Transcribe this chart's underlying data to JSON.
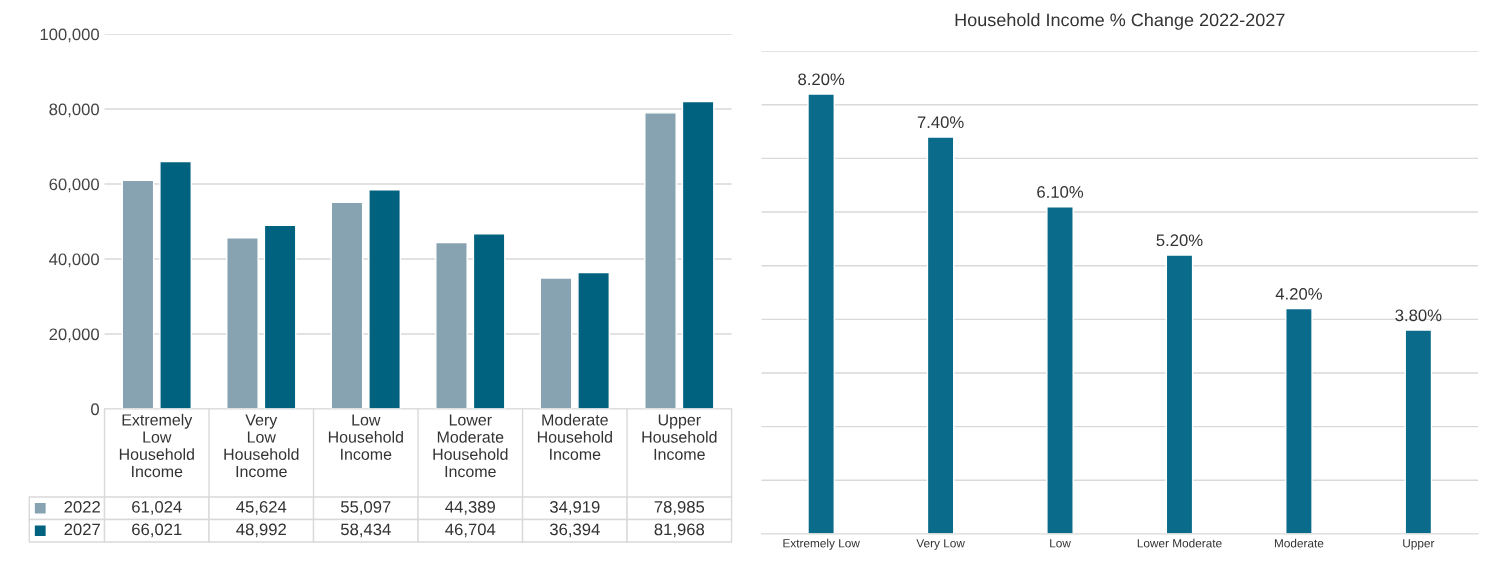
{
  "chart_data": [
    {
      "type": "bar",
      "categories": [
        "Extremely Low Household Income",
        "Very Low Household Income",
        "Low Household Income",
        "Lower Moderate Household Income",
        "Moderate Household Income",
        "Upper Household Income"
      ],
      "series": [
        {
          "name": "2022",
          "color": "#87a2b0",
          "values": [
            61024,
            45624,
            55097,
            44389,
            34919,
            78985
          ],
          "value_labels": [
            "61,024",
            "45,624",
            "55,097",
            "44,389",
            "34,919",
            "78,985"
          ]
        },
        {
          "name": "2027",
          "color": "#00627f",
          "values": [
            66021,
            48992,
            58434,
            46704,
            36394,
            81968
          ],
          "value_labels": [
            "66,021",
            "48,992",
            "58,434",
            "46,704",
            "36,394",
            "81,968"
          ]
        }
      ],
      "ylim": [
        0,
        100000
      ],
      "yticks": [
        {
          "value": 0,
          "label": "0"
        },
        {
          "value": 20000,
          "label": "20,000"
        },
        {
          "value": 40000,
          "label": "40,000"
        },
        {
          "value": 60000,
          "label": "60,000"
        },
        {
          "value": 80000,
          "label": "80,000"
        },
        {
          "value": 100000,
          "label": "100,000"
        }
      ],
      "grid": "y",
      "legend": "bottom"
    },
    {
      "type": "bar",
      "title": "Household Income % Change 2022-2027",
      "categories": [
        "Extremely Low",
        "Very Low",
        "Low",
        "Lower Moderate",
        "Moderate",
        "Upper"
      ],
      "values": [
        8.2,
        7.4,
        6.1,
        5.2,
        4.2,
        3.8
      ],
      "value_labels": [
        "8.20%",
        "7.40%",
        "6.10%",
        "5.20%",
        "4.20%",
        "3.80%"
      ],
      "color": "#0b6b8a",
      "ylim": [
        0,
        9
      ],
      "yticks": [
        {
          "value": 1,
          "label": null
        },
        {
          "value": 2,
          "label": null
        },
        {
          "value": 3,
          "label": null
        },
        {
          "value": 4,
          "label": null
        },
        {
          "value": 5,
          "label": null
        },
        {
          "value": 6,
          "label": null
        },
        {
          "value": 7,
          "label": null
        },
        {
          "value": 8,
          "label": null
        },
        {
          "value": 9,
          "label": null
        }
      ],
      "grid": "y",
      "tick_labels": "x"
    }
  ]
}
